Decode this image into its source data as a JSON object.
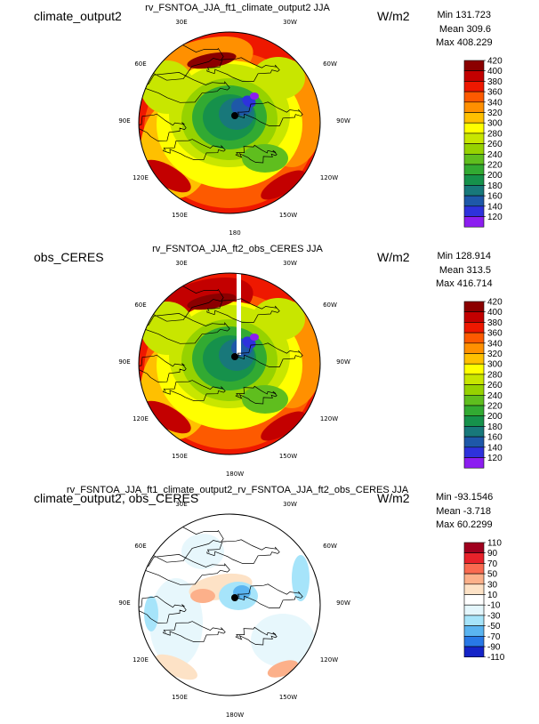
{
  "chart_data": [
    {
      "type": "heatmap",
      "projection": "north-polar-stereographic",
      "left_title": "climate_output2",
      "title": "rv_FSNTOA_JJA_ft1_climate_output2 JJA",
      "units": "W/m2",
      "stats": {
        "min": "Min 131.723",
        "mean": "Mean 309.6",
        "max": "Max 408.229"
      },
      "lon_labels": [
        "30E",
        "30W",
        "60E",
        "60W",
        "90E",
        "90W",
        "120E",
        "120W",
        "150E",
        "150W",
        "180"
      ],
      "colorbar": {
        "levels": [
          "420",
          "400",
          "380",
          "360",
          "340",
          "320",
          "300",
          "280",
          "260",
          "240",
          "220",
          "200",
          "180",
          "160",
          "140",
          "120"
        ],
        "colors": [
          "#8b0000",
          "#c30000",
          "#ee1800",
          "#fd5a00",
          "#ff9000",
          "#ffc000",
          "#ffff00",
          "#c8e600",
          "#96d200",
          "#5fbe1e",
          "#32aa32",
          "#16914b",
          "#18787a",
          "#1e58a8",
          "#2e32dc",
          "#8c1ef0"
        ]
      }
    },
    {
      "type": "heatmap",
      "projection": "north-polar-stereographic",
      "left_title": "obs_CERES",
      "title": "rv_FSNTOA_JJA_ft2_obs_CERES JJA",
      "units": "W/m2",
      "stats": {
        "min": "Min 128.914",
        "mean": "Mean 313.5",
        "max": "Max 416.714"
      },
      "lon_labels": [
        "30E",
        "30W",
        "60E",
        "60W",
        "90E",
        "90W",
        "120E",
        "120W",
        "150E",
        "150W",
        "180W"
      ],
      "colorbar": {
        "levels": [
          "420",
          "400",
          "380",
          "360",
          "340",
          "320",
          "300",
          "280",
          "260",
          "240",
          "220",
          "200",
          "180",
          "160",
          "140",
          "120"
        ],
        "colors": [
          "#8b0000",
          "#c30000",
          "#ee1800",
          "#fd5a00",
          "#ff9000",
          "#ffc000",
          "#ffff00",
          "#c8e600",
          "#96d200",
          "#5fbe1e",
          "#32aa32",
          "#16914b",
          "#18787a",
          "#1e58a8",
          "#2e32dc",
          "#8c1ef0"
        ]
      }
    },
    {
      "type": "heatmap",
      "projection": "north-polar-stereographic",
      "left_title": "climate_output2, obs_CERES",
      "title": "rv_FSNTOA_JJA_ft1_climate_output2_rv_FSNTOA_JJA_ft2_obs_CERES JJA",
      "units": "W/m2",
      "stats": {
        "min": "Min -93.1546",
        "mean": "Mean -3.718",
        "max": "Max 60.2299"
      },
      "lon_labels": [
        "30E",
        "30W",
        "60E",
        "60W",
        "90E",
        "90W",
        "120E",
        "120W",
        "150E",
        "150W",
        "180W"
      ],
      "colorbar": {
        "levels": [
          "110",
          "90",
          "70",
          "50",
          "30",
          "10",
          "-10",
          "-30",
          "-50",
          "-70",
          "-90",
          "-110"
        ],
        "colors": [
          "#a0001e",
          "#e8222a",
          "#fa6a50",
          "#fcb08a",
          "#fde2c6",
          "#ffffff",
          "#e4f6fc",
          "#a6e4fa",
          "#5ab4f0",
          "#2878e6",
          "#1424c8"
        ]
      }
    }
  ]
}
